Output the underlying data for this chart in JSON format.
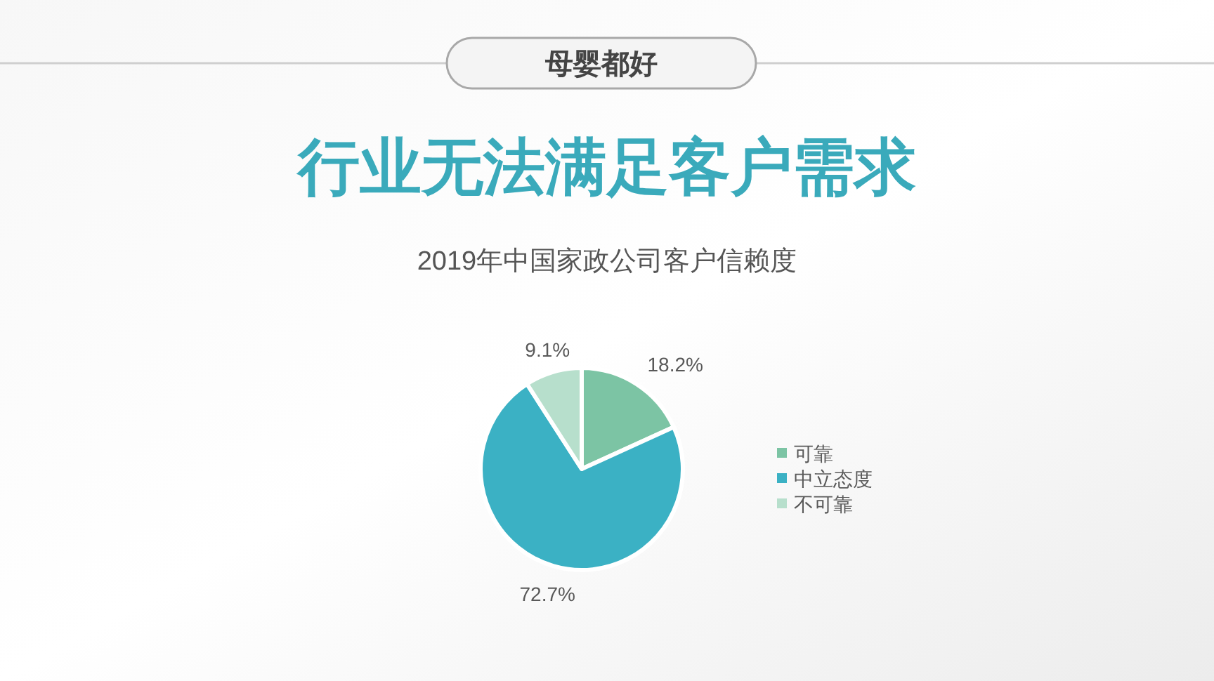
{
  "chart_data": {
    "type": "pie",
    "title": "行业无法满足客户需求",
    "subtitle": "2019年中国家政公司客户信赖度",
    "annotations": [
      "母婴都好"
    ],
    "categories": [
      "可靠",
      "中立态度",
      "不可靠"
    ],
    "values": [
      18.2,
      72.7,
      9.1
    ],
    "colors": [
      "#7cc4a4",
      "#3bb1c4",
      "#b7dfcc"
    ],
    "value_labels": [
      "18.2%",
      "72.7%",
      "9.1%"
    ],
    "legend": "right"
  }
}
